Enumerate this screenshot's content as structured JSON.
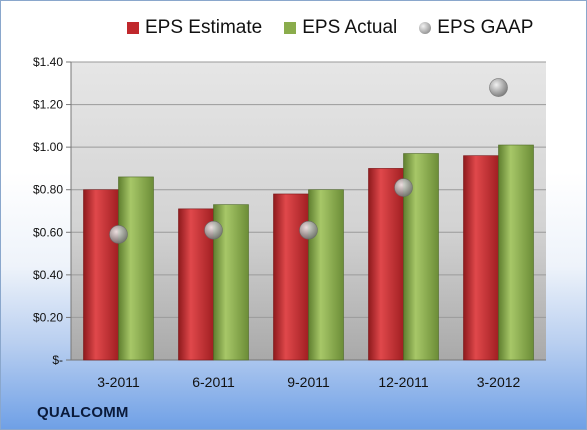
{
  "legend": {
    "estimate": "EPS Estimate",
    "actual": "EPS Actual",
    "gaap": "EPS GAAP"
  },
  "company": "QUALCOMM",
  "colors": {
    "estimate": "#c0282c",
    "actual": "#8aac4c",
    "gaap": "#a6a6a6"
  },
  "chart_data": {
    "type": "bar",
    "categories": [
      "3-2011",
      "6-2011",
      "9-2011",
      "12-2011",
      "3-2012"
    ],
    "series": [
      {
        "name": "EPS Estimate",
        "values": [
          0.8,
          0.71,
          0.78,
          0.9,
          0.96
        ]
      },
      {
        "name": "EPS Actual",
        "values": [
          0.86,
          0.73,
          0.8,
          0.97,
          1.01
        ]
      },
      {
        "name": "EPS GAAP",
        "values": [
          0.59,
          0.61,
          0.61,
          0.81,
          1.28
        ],
        "marker": "circle"
      }
    ],
    "y_ticks": [
      "$-",
      "$0.20",
      "$0.40",
      "$0.60",
      "$0.80",
      "$1.00",
      "$1.20",
      "$1.40"
    ],
    "ylim": [
      0,
      1.4
    ],
    "grid": true,
    "legend_position": "top"
  }
}
